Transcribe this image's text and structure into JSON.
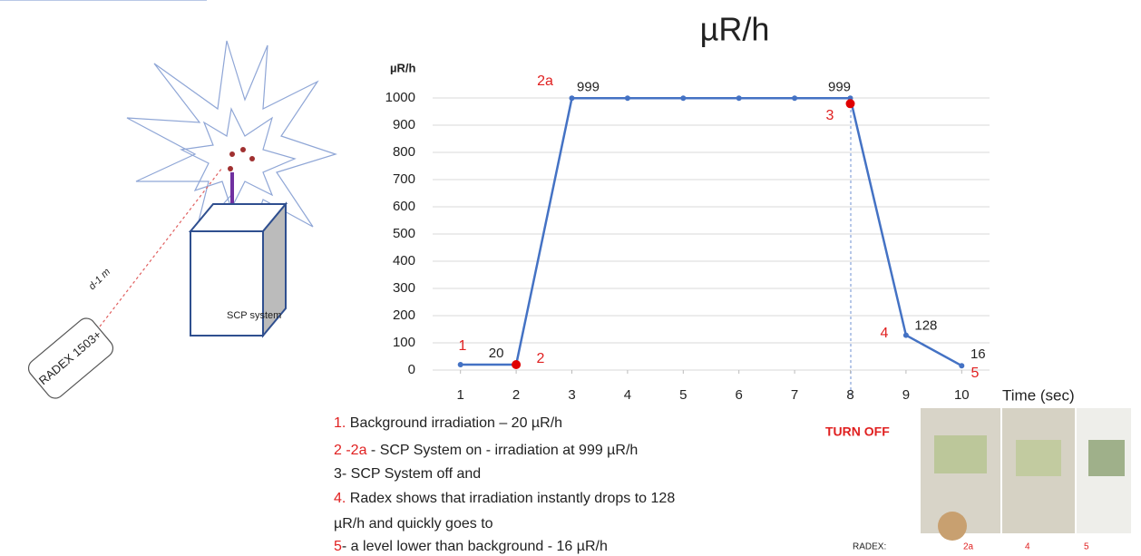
{
  "chart_data": {
    "type": "line",
    "title": "µR/h",
    "y_label": "µR/h",
    "x_label": "Time (sec)",
    "x": [
      1,
      2,
      3,
      4,
      5,
      6,
      7,
      8,
      9,
      10
    ],
    "series": [
      {
        "color": "#4472c4",
        "values": [
          20,
          20,
          999,
          999,
          999,
          999,
          999,
          999,
          128,
          16
        ],
        "value_labels": [
          null,
          "20",
          "999",
          null,
          null,
          null,
          null,
          "999",
          "128",
          "16"
        ]
      }
    ],
    "xlim": [
      0.5,
      10.5
    ],
    "xticks": [
      1,
      2,
      3,
      4,
      5,
      6,
      7,
      8,
      9,
      10
    ],
    "ylim": [
      0,
      1000
    ],
    "yticks": [
      0,
      100,
      200,
      300,
      400,
      500,
      600,
      700,
      800,
      900,
      1000
    ],
    "grid": true,
    "annotations": [
      "1",
      "2",
      "2a",
      "3",
      "4",
      "5"
    ]
  },
  "slide": {
    "turn_off": "TURN OFF",
    "notes": [
      {
        "marker": "1.",
        "text": " Background irradiation – 20 µR/h"
      },
      {
        "marker": "2 -2a",
        "text": " - SCP System on   - irradiation at  999  µR/h"
      },
      {
        "text": "3- SCP System off   and"
      },
      {
        "marker": "4.",
        "text": " Radex shows  that  irradiation instantly drops to 128"
      },
      {
        "text": "µR/h and quickly  goes to"
      },
      {
        "marker": "5",
        "text": "- a level lower than background - 16 µR/h"
      }
    ],
    "photo_labels": [
      "RADEX:",
      "2a",
      "4",
      "5"
    ],
    "diagram": {
      "device": "RADEX 1503+",
      "distance": "d-1 m",
      "system": "SCP system"
    }
  }
}
